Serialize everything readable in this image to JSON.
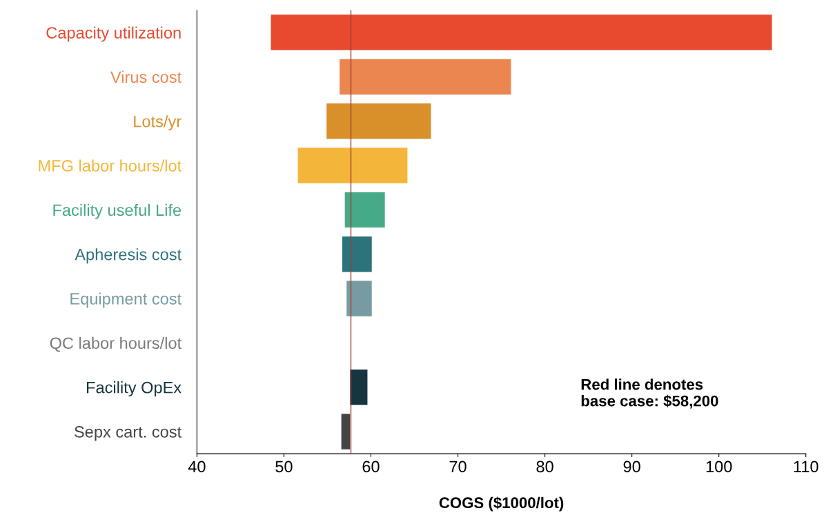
{
  "chart_data": {
    "type": "bar",
    "orientation": "horizontal",
    "xlabel": "COGS ($1000/lot)",
    "categories": [
      "Capacity utilization",
      "Virus cost",
      "Lots/yr",
      "MFG labor hours/lot",
      "Facility useful Life",
      "Apheresis cost",
      "Equipment cost",
      "QC labor hours/lot",
      "Facility OpEx",
      "Sepx cart. cost"
    ],
    "base": [
      48.5,
      56.4,
      54.9,
      51.6,
      57.0,
      56.7,
      57.2,
      null,
      57.6,
      56.6
    ],
    "values": [
      57.6,
      19.7,
      12.0,
      12.6,
      4.6,
      3.4,
      2.9,
      null,
      2.0,
      1.0
    ],
    "colors": [
      "#e84a30",
      "#ec8651",
      "#d9902a",
      "#f4b63a",
      "#46a987",
      "#2c737b",
      "#789ba3",
      null,
      "#163540",
      "#444444"
    ],
    "xlim": [
      40,
      110
    ],
    "xticks": [
      40,
      50,
      60,
      70,
      80,
      90,
      100,
      110
    ],
    "ref_lines": [
      {
        "axis": "x",
        "value": 57.7,
        "color": "#a04030"
      }
    ],
    "annotations": [
      "Red line denotes\nbase case: $58,200"
    ],
    "grid": false,
    "legend": false
  }
}
